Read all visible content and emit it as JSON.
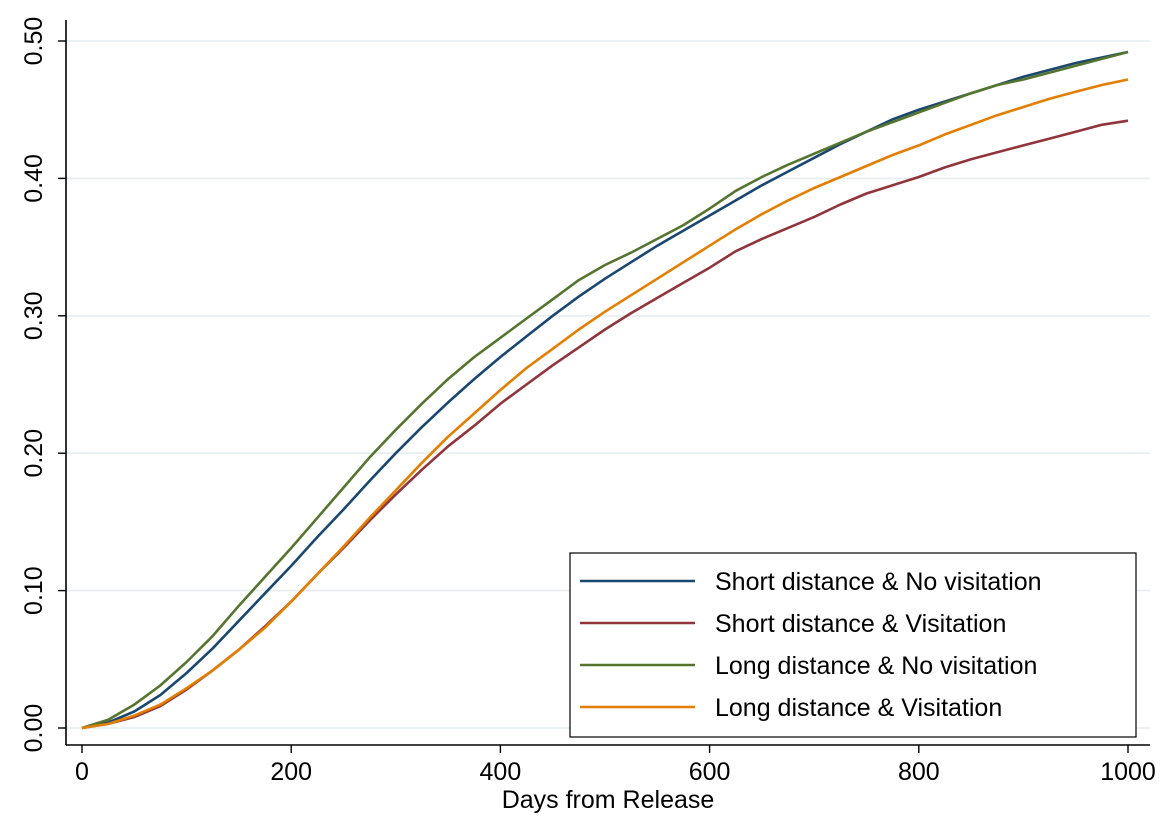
{
  "chart_data": {
    "type": "line",
    "title": "",
    "xlabel": "Days from Release",
    "ylabel": "",
    "xlim": [
      0,
      1000
    ],
    "ylim": [
      0,
      0.5
    ],
    "x_ticks": [
      0,
      200,
      400,
      600,
      800,
      1000
    ],
    "x_tick_labels": [
      "0",
      "200",
      "400",
      "600",
      "800",
      "1000"
    ],
    "y_ticks": [
      0,
      0.1,
      0.2,
      0.3,
      0.4,
      0.5
    ],
    "y_tick_labels": [
      "0.00",
      "0.10",
      "0.20",
      "0.30",
      "0.40",
      "0.50"
    ],
    "grid": "horizontal",
    "legend_position": "bottom-right",
    "x": [
      0,
      25,
      50,
      75,
      100,
      125,
      150,
      175,
      200,
      225,
      250,
      275,
      300,
      325,
      350,
      375,
      400,
      425,
      450,
      475,
      500,
      525,
      550,
      575,
      600,
      625,
      650,
      675,
      700,
      725,
      750,
      775,
      800,
      825,
      850,
      875,
      900,
      925,
      950,
      975,
      1000
    ],
    "series": [
      {
        "name": "Short distance & No visitation",
        "color": "#1a476f",
        "values": [
          0.0,
          0.004,
          0.012,
          0.024,
          0.04,
          0.058,
          0.078,
          0.098,
          0.118,
          0.139,
          0.159,
          0.18,
          0.2,
          0.219,
          0.237,
          0.254,
          0.27,
          0.285,
          0.3,
          0.314,
          0.327,
          0.339,
          0.351,
          0.362,
          0.373,
          0.384,
          0.395,
          0.405,
          0.415,
          0.425,
          0.434,
          0.443,
          0.45,
          0.456,
          0.462,
          0.468,
          0.474,
          0.479,
          0.484,
          0.488,
          0.492
        ]
      },
      {
        "name": "Short distance & Visitation",
        "color": "#90353b",
        "values": [
          0.0,
          0.003,
          0.008,
          0.016,
          0.028,
          0.042,
          0.057,
          0.074,
          0.092,
          0.112,
          0.131,
          0.151,
          0.17,
          0.188,
          0.205,
          0.22,
          0.236,
          0.25,
          0.264,
          0.277,
          0.29,
          0.302,
          0.313,
          0.324,
          0.335,
          0.347,
          0.356,
          0.364,
          0.372,
          0.381,
          0.389,
          0.395,
          0.401,
          0.408,
          0.414,
          0.419,
          0.424,
          0.429,
          0.434,
          0.439,
          0.442
        ]
      },
      {
        "name": "Long distance & No visitation",
        "color": "#55752f",
        "values": [
          0.0,
          0.006,
          0.017,
          0.031,
          0.048,
          0.067,
          0.089,
          0.11,
          0.131,
          0.153,
          0.175,
          0.197,
          0.217,
          0.236,
          0.254,
          0.27,
          0.284,
          0.298,
          0.312,
          0.326,
          0.337,
          0.346,
          0.356,
          0.366,
          0.378,
          0.391,
          0.401,
          0.41,
          0.418,
          0.426,
          0.434,
          0.441,
          0.448,
          0.455,
          0.462,
          0.468,
          0.472,
          0.477,
          0.482,
          0.487,
          0.492
        ]
      },
      {
        "name": "Long distance & Visitation",
        "color": "#e37e00",
        "values": [
          0.0,
          0.003,
          0.009,
          0.017,
          0.029,
          0.042,
          0.057,
          0.073,
          0.092,
          0.112,
          0.132,
          0.153,
          0.173,
          0.193,
          0.212,
          0.229,
          0.246,
          0.262,
          0.276,
          0.29,
          0.303,
          0.315,
          0.327,
          0.339,
          0.351,
          0.363,
          0.374,
          0.384,
          0.393,
          0.401,
          0.409,
          0.417,
          0.424,
          0.432,
          0.439,
          0.446,
          0.452,
          0.458,
          0.463,
          0.468,
          0.472
        ]
      }
    ]
  }
}
